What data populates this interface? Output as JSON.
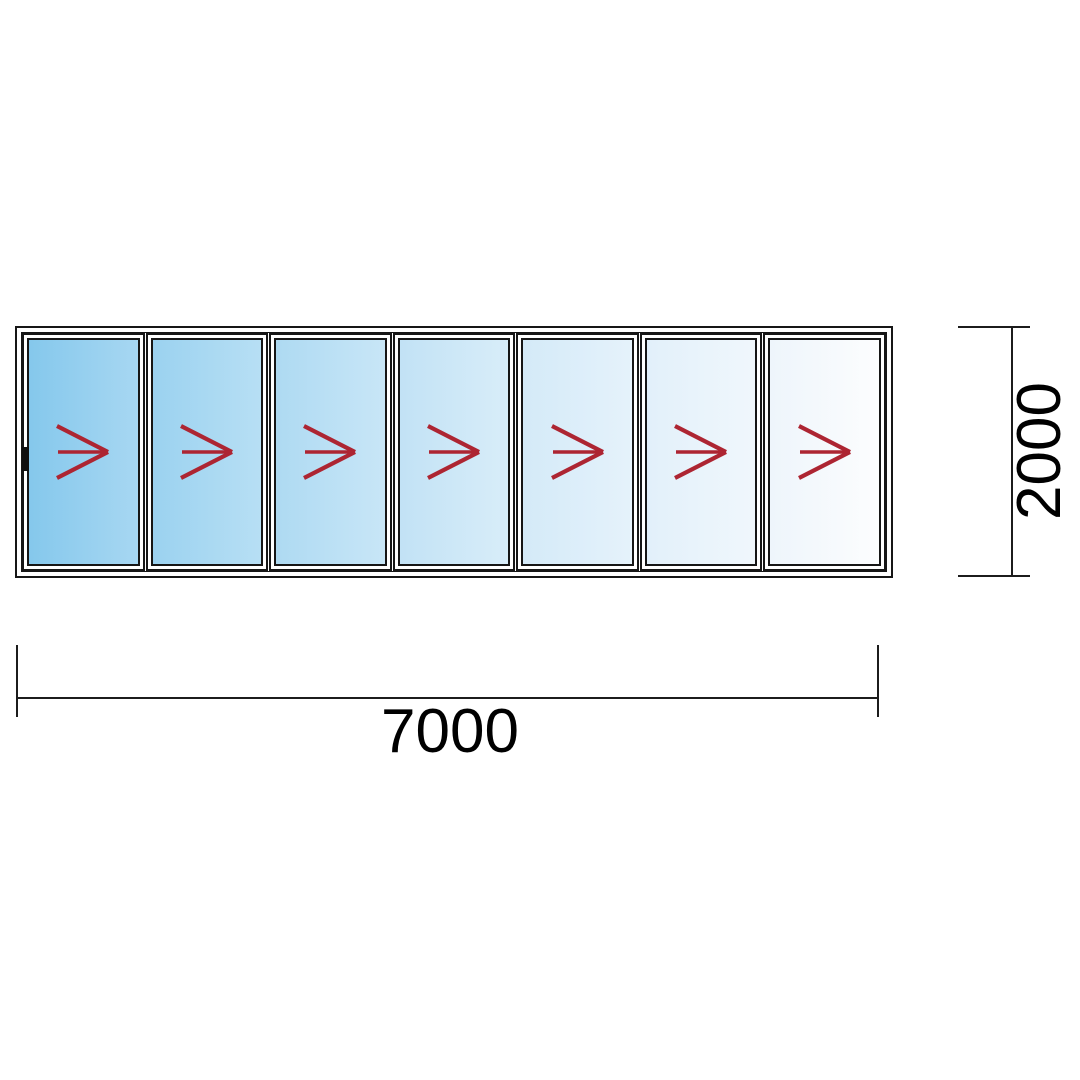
{
  "page": {
    "background_color": "#ffffff"
  },
  "door": {
    "leaf_count": 7,
    "frame_color": "#161616",
    "frame_fill_color": "#ffffff",
    "handle_color": "#0f0f0f",
    "arrow_color": "#ad2532",
    "panels": [
      {
        "glass_start": "#85c8ec",
        "glass_end": "#a7d7f2"
      },
      {
        "glass_start": "#9bd2f0",
        "glass_end": "#b7dff4"
      },
      {
        "glass_start": "#aedaf2",
        "glass_end": "#c8e6f7"
      },
      {
        "glass_start": "#c2e2f5",
        "glass_end": "#d8edf9"
      },
      {
        "glass_start": "#d4eaf8",
        "glass_end": "#e5f2fb"
      },
      {
        "glass_start": "#e2f0fa",
        "glass_end": "#f0f7fc"
      },
      {
        "glass_start": "#eef5fb",
        "glass_end": "#fcfdfe"
      }
    ]
  },
  "dimensions": {
    "line_color": "#1c1c1c",
    "text_color": "#000000",
    "width": {
      "label": "7000"
    },
    "height": {
      "label": "2000"
    }
  }
}
